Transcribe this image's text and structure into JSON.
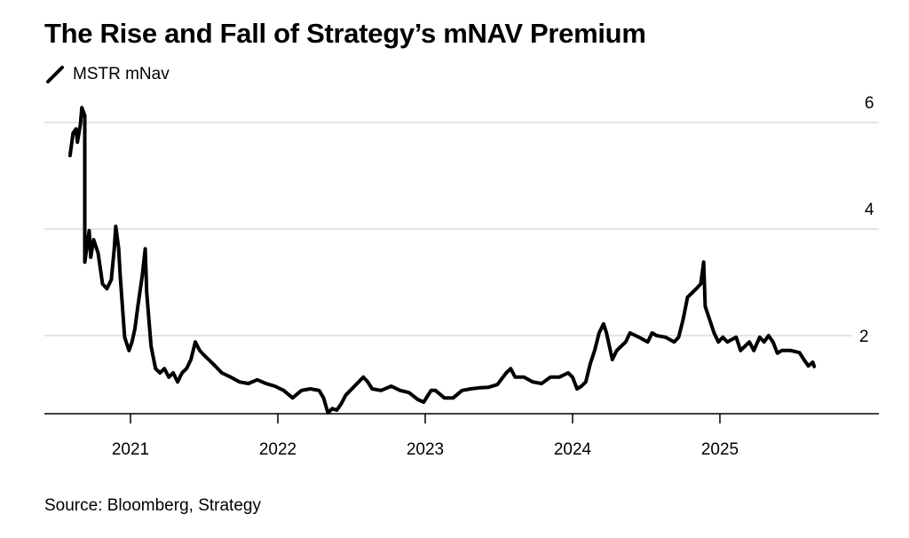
{
  "chart_data": {
    "type": "line",
    "title": "The Rise and Fall of Strategy’s mNAV Premium",
    "legend": [
      "MSTR mNav"
    ],
    "legend_placement": "top-left",
    "source": "Source: Bloomberg, Strategy",
    "xlabel": "",
    "ylabel": "",
    "x_ticks": [
      "2021",
      "2022",
      "2023",
      "2024",
      "2025"
    ],
    "x_tick_values": [
      2021,
      2022,
      2023,
      2024,
      2025
    ],
    "y_ticks": [
      "2",
      "4",
      "6"
    ],
    "y_tick_values": [
      2,
      4,
      6
    ],
    "ylim": [
      0.53,
      6.4
    ],
    "xlim": [
      2020.4,
      2025.95
    ],
    "grid": true,
    "series": [
      {
        "name": "MSTR mNav",
        "color": "#000000",
        "x": [
          2020.59,
          2020.61,
          2020.63,
          2020.64,
          2020.66,
          2020.67,
          2020.69,
          2020.69,
          2020.72,
          2020.73,
          2020.75,
          2020.78,
          2020.81,
          2020.84,
          2020.87,
          2020.89,
          2020.9,
          2020.92,
          2020.93,
          2020.96,
          2020.99,
          2021.01,
          2021.03,
          2021.05,
          2021.08,
          2021.1,
          2021.11,
          2021.14,
          2021.17,
          2021.2,
          2021.23,
          2021.26,
          2021.29,
          2021.32,
          2021.35,
          2021.38,
          2021.41,
          2021.44,
          2021.47,
          2021.5,
          2021.56,
          2021.62,
          2021.68,
          2021.74,
          2021.8,
          2021.86,
          2021.92,
          2021.98,
          2022.04,
          2022.1,
          2022.16,
          2022.22,
          2022.28,
          2022.31,
          2022.34,
          2022.37,
          2022.4,
          2022.43,
          2022.46,
          2022.52,
          2022.58,
          2022.61,
          2022.64,
          2022.7,
          2022.77,
          2022.83,
          2022.89,
          2022.95,
          2022.99,
          2023.04,
          2023.07,
          2023.13,
          2023.19,
          2023.25,
          2023.31,
          2023.37,
          2023.43,
          2023.49,
          2023.55,
          2023.58,
          2023.61,
          2023.67,
          2023.73,
          2023.79,
          2023.85,
          2023.91,
          2023.97,
          2024.0,
          2024.03,
          2024.06,
          2024.09,
          2024.12,
          2024.15,
          2024.18,
          2024.21,
          2024.23,
          2024.25,
          2024.27,
          2024.3,
          2024.33,
          2024.36,
          2024.39,
          2024.45,
          2024.51,
          2024.54,
          2024.57,
          2024.63,
          2024.69,
          2024.72,
          2024.75,
          2024.78,
          2024.81,
          2024.84,
          2024.87,
          2024.89,
          2024.9,
          2024.93,
          2024.96,
          2024.99,
          2025.02,
          2025.05,
          2025.11,
          2025.14,
          2025.17,
          2025.2,
          2025.23,
          2025.27,
          2025.3,
          2025.33,
          2025.36,
          2025.39,
          2025.42,
          2025.48,
          2025.54,
          2025.57,
          2025.6,
          2025.63,
          2025.64
        ],
        "values": [
          5.38,
          5.8,
          5.88,
          5.63,
          5.97,
          6.28,
          6.13,
          3.38,
          3.97,
          3.47,
          3.8,
          3.55,
          2.97,
          2.88,
          3.05,
          3.63,
          4.05,
          3.63,
          3.13,
          1.97,
          1.72,
          1.88,
          2.13,
          2.55,
          3.13,
          3.63,
          2.8,
          1.8,
          1.38,
          1.3,
          1.38,
          1.22,
          1.3,
          1.13,
          1.3,
          1.38,
          1.55,
          1.88,
          1.72,
          1.63,
          1.47,
          1.3,
          1.22,
          1.13,
          1.1,
          1.17,
          1.1,
          1.05,
          0.97,
          0.83,
          0.97,
          1.0,
          0.97,
          0.83,
          0.55,
          0.63,
          0.6,
          0.72,
          0.88,
          1.05,
          1.22,
          1.13,
          1.0,
          0.97,
          1.05,
          0.97,
          0.93,
          0.8,
          0.75,
          0.97,
          0.97,
          0.83,
          0.83,
          0.97,
          1.0,
          1.02,
          1.03,
          1.08,
          1.3,
          1.38,
          1.22,
          1.22,
          1.13,
          1.1,
          1.22,
          1.22,
          1.3,
          1.22,
          1.0,
          1.05,
          1.13,
          1.47,
          1.72,
          2.05,
          2.22,
          2.05,
          1.8,
          1.55,
          1.72,
          1.8,
          1.88,
          2.05,
          1.97,
          1.88,
          2.05,
          2.0,
          1.97,
          1.88,
          1.97,
          2.3,
          2.72,
          2.8,
          2.88,
          2.97,
          3.38,
          2.55,
          2.3,
          2.05,
          1.88,
          1.97,
          1.88,
          1.97,
          1.72,
          1.8,
          1.88,
          1.72,
          1.97,
          1.88,
          2.0,
          1.88,
          1.67,
          1.72,
          1.72,
          1.68,
          1.55,
          1.43,
          1.5,
          1.42
        ]
      }
    ]
  }
}
